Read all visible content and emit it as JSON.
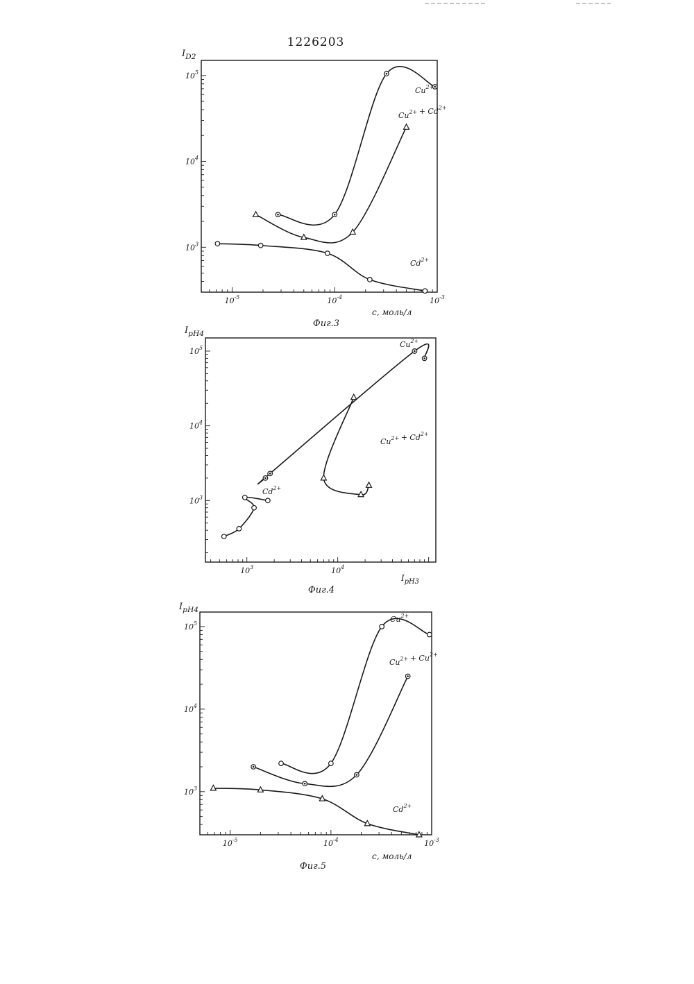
{
  "document": {
    "patent_number": "1226203"
  },
  "chart_data": [
    {
      "id": "fig3",
      "type": "line",
      "caption": "Фиг.3",
      "ylabel": "I_D2",
      "xlabel": "c, моль/л",
      "xscale": "log",
      "yscale": "log",
      "xlim": [
        5e-06,
        0.001
      ],
      "ylim": [
        300,
        150000
      ],
      "xticks": [
        {
          "v": 1e-05,
          "label": "10^-5"
        },
        {
          "v": 0.0001,
          "label": "10^-4"
        },
        {
          "v": 0.001,
          "label": "10^-3"
        }
      ],
      "yticks": [
        {
          "v": 1000,
          "label": "10^3"
        },
        {
          "v": 10000,
          "label": "10^4"
        },
        {
          "v": 100000,
          "label": "10^5"
        }
      ],
      "series": [
        {
          "name": "Cu 2+",
          "marker": "circle-dot",
          "x": [
            2.8e-05,
            0.0001,
            0.00032,
            0.00095
          ],
          "y": [
            2400,
            2400,
            105000,
            74000
          ]
        },
        {
          "name": "Cu 2+ + Cd 2+",
          "marker": "triangle",
          "x": [
            1.7e-05,
            5e-05,
            0.00015,
            0.0005
          ],
          "y": [
            2400,
            1300,
            1500,
            25000
          ]
        },
        {
          "name": "Cd 2+",
          "marker": "circle",
          "x": [
            7.2e-06,
            1.9e-05,
            8.5e-05,
            0.00022,
            0.00076
          ],
          "y": [
            1100,
            1050,
            850,
            420,
            310
          ]
        }
      ]
    },
    {
      "id": "fig4",
      "type": "scatter",
      "caption": "Фиг.4",
      "ylabel": "I_pH4",
      "xlabel": "I_pH3",
      "xscale": "log",
      "yscale": "log",
      "xlim": [
        350,
        120000
      ],
      "ylim": [
        150,
        150000
      ],
      "xticks": [
        {
          "v": 1000,
          "label": "10^3"
        },
        {
          "v": 10000,
          "label": "10^4"
        }
      ],
      "yticks": [
        {
          "v": 1000,
          "label": "10^3"
        },
        {
          "v": 10000,
          "label": "10^4"
        },
        {
          "v": 100000,
          "label": "10^5"
        }
      ],
      "series": [
        {
          "name": "Cu 2+",
          "marker": "circle-dot",
          "x": [
            1600,
            1800,
            70000,
            90000
          ],
          "y": [
            2000,
            2300,
            100000,
            80000
          ]
        },
        {
          "name": "Cu 2+ + Cd 2+",
          "marker": "triangle",
          "x": [
            15000,
            7000,
            18000,
            22000
          ],
          "y": [
            24000,
            2000,
            1200,
            1600
          ]
        },
        {
          "name": "Cd 2+",
          "marker": "circle",
          "x": [
            1700,
            950,
            1200,
            820,
            560
          ],
          "y": [
            1000,
            1100,
            800,
            420,
            330
          ]
        }
      ]
    },
    {
      "id": "fig5",
      "type": "line",
      "caption": "Фиг.5",
      "ylabel": "I_pH4",
      "xlabel": "c, моль/л",
      "xscale": "log",
      "yscale": "log",
      "xlim": [
        5e-06,
        0.001
      ],
      "ylim": [
        300,
        150000
      ],
      "xticks": [
        {
          "v": 1e-05,
          "label": "10^-5"
        },
        {
          "v": 0.0001,
          "label": "10^-4"
        },
        {
          "v": 0.001,
          "label": "10^-3"
        }
      ],
      "yticks": [
        {
          "v": 1000,
          "label": "10^3"
        },
        {
          "v": 10000,
          "label": "10^4"
        },
        {
          "v": 100000,
          "label": "10^5"
        }
      ],
      "series": [
        {
          "name": "Cu 2+",
          "marker": "circle",
          "x": [
            3.2e-05,
            0.0001,
            0.00032,
            0.00095
          ],
          "y": [
            2200,
            2200,
            100000,
            80000
          ]
        },
        {
          "name": "Cu 2+ + Cu 2+",
          "marker": "circle-dot",
          "x": [
            1.7e-05,
            5.5e-05,
            0.00018,
            0.00058
          ],
          "y": [
            2000,
            1250,
            1600,
            25000
          ]
        },
        {
          "name": "Cd 2+",
          "marker": "triangle",
          "x": [
            6.8e-06,
            2e-05,
            8.2e-05,
            0.00023,
            0.00075
          ],
          "y": [
            1100,
            1050,
            820,
            410,
            300
          ]
        }
      ]
    }
  ]
}
